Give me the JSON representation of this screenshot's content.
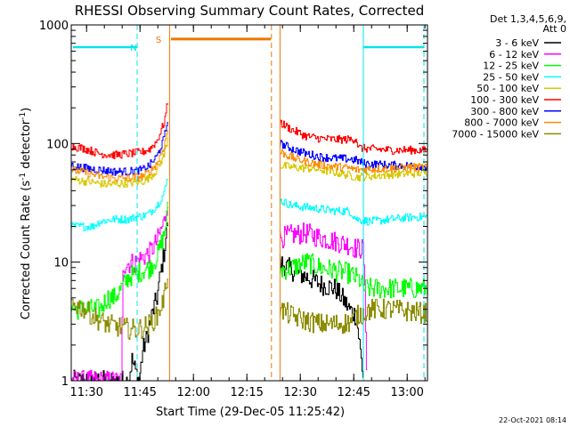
{
  "chart_data": {
    "type": "line",
    "title": "RHESSI Observing Summary Count Rates, Corrected",
    "xlabel": "Start Time (29-Dec-05 11:25:42)",
    "ylabel": "Corrected Count Rate (s",
    "ylabel_sup1": "-1",
    "ylabel_mid": " detector",
    "ylabel_sup2": "-1",
    "ylabel_end": ")",
    "yscale": "log",
    "ylim": [
      1,
      1000
    ],
    "xlim_minutes": [
      0,
      100
    ],
    "xticks": [
      {
        "t": 4.3,
        "label": "11:30"
      },
      {
        "t": 19.3,
        "label": "11:45"
      },
      {
        "t": 34.3,
        "label": "12:00"
      },
      {
        "t": 49.3,
        "label": "12:15"
      },
      {
        "t": 64.3,
        "label": "12:30"
      },
      {
        "t": 79.3,
        "label": "12:45"
      },
      {
        "t": 94.3,
        "label": "13:00"
      }
    ],
    "yticks": [
      {
        "v": 1,
        "label": "1"
      },
      {
        "v": 10,
        "label": "10"
      },
      {
        "v": 100,
        "label": "100"
      },
      {
        "v": 1000,
        "label": "1000"
      }
    ],
    "legend_header": [
      "Det 1,3,4,5,6,9,",
      "Att 0"
    ],
    "legend_position": "right",
    "flags": [
      {
        "label": "N",
        "color": "#00e5ee",
        "level": 650,
        "segments": [
          [
            0.5,
            18.5
          ],
          [
            82,
            99
          ]
        ]
      },
      {
        "label": "S",
        "color": "#ee7600",
        "level": 760,
        "segments": [
          [
            28,
            56
          ]
        ]
      }
    ],
    "annotation_label_positions_t": {
      "N": 17.5,
      "S": 24.5
    },
    "vlines": [
      {
        "t": 18.5,
        "color": "#00e5ee",
        "dash": true
      },
      {
        "t": 27.6,
        "color": "#ee7600",
        "dash": false
      },
      {
        "t": 56.2,
        "color": "#ee7600",
        "dash": true
      },
      {
        "t": 58.6,
        "color": "#ee7600",
        "dash": false
      },
      {
        "t": 82.0,
        "color": "#00e5ee",
        "dash": false
      },
      {
        "t": 99.0,
        "color": "#00e5ee",
        "dash": true
      }
    ],
    "gap": [
      27.0,
      58.6
    ],
    "series": [
      {
        "name": "3 - 6 keV",
        "color": "#000000",
        "points": [
          [
            0,
            1
          ],
          [
            16,
            1
          ],
          [
            17,
            1.5
          ],
          [
            18,
            1.2
          ],
          [
            19,
            1
          ],
          [
            20,
            1.8
          ],
          [
            21,
            2.2
          ],
          [
            22,
            3
          ],
          [
            23,
            4
          ],
          [
            24,
            5
          ],
          [
            25,
            8
          ],
          [
            26,
            12
          ],
          [
            27,
            22
          ],
          [
            58.6,
            10
          ],
          [
            62,
            8.5
          ],
          [
            66,
            7.5
          ],
          [
            70,
            6.5
          ],
          [
            74,
            6
          ],
          [
            76,
            5
          ],
          [
            78,
            4
          ],
          [
            80,
            3.5
          ],
          [
            82,
            1
          ]
        ]
      },
      {
        "name": "6 - 12 keV",
        "color": "#ff00ff",
        "points": [
          [
            0,
            1
          ],
          [
            14,
            1
          ],
          [
            14.5,
            9.5
          ],
          [
            18,
            10
          ],
          [
            20,
            11
          ],
          [
            22,
            12
          ],
          [
            24,
            15
          ],
          [
            26,
            22
          ],
          [
            27,
            33
          ],
          [
            58.6,
            16
          ],
          [
            62,
            17
          ],
          [
            66,
            17.5
          ],
          [
            70,
            16
          ],
          [
            74,
            15
          ],
          [
            78,
            14
          ],
          [
            80,
            13
          ],
          [
            82,
            13
          ],
          [
            83,
            1
          ]
        ]
      },
      {
        "name": "12 - 25 keV",
        "color": "#00ff00",
        "points": [
          [
            0,
            4
          ],
          [
            8,
            4
          ],
          [
            10,
            5
          ],
          [
            12,
            5
          ],
          [
            14,
            6
          ],
          [
            16,
            7.5
          ],
          [
            18,
            8
          ],
          [
            20,
            8.5
          ],
          [
            22,
            9
          ],
          [
            24,
            11
          ],
          [
            26,
            17
          ],
          [
            27,
            27
          ],
          [
            58.6,
            8.5
          ],
          [
            62,
            9
          ],
          [
            66,
            10
          ],
          [
            70,
            9
          ],
          [
            74,
            8.5
          ],
          [
            78,
            8
          ],
          [
            81,
            7
          ],
          [
            82,
            6
          ],
          [
            100,
            6
          ]
        ]
      },
      {
        "name": "25 - 50 keV",
        "color": "#00ffff",
        "points": [
          [
            0,
            20
          ],
          [
            6,
            20
          ],
          [
            8,
            22
          ],
          [
            12,
            23
          ],
          [
            16,
            23
          ],
          [
            18,
            24
          ],
          [
            20,
            24.5
          ],
          [
            22,
            26
          ],
          [
            24,
            30
          ],
          [
            26,
            38
          ],
          [
            27,
            52
          ],
          [
            58.6,
            33
          ],
          [
            62,
            30
          ],
          [
            66,
            29
          ],
          [
            70,
            28
          ],
          [
            74,
            27
          ],
          [
            78,
            27
          ],
          [
            80,
            23
          ],
          [
            84,
            22
          ],
          [
            90,
            23
          ],
          [
            96,
            24
          ],
          [
            100,
            24
          ]
        ]
      },
      {
        "name": "50 - 100 keV",
        "color": "#d7c800",
        "points": [
          [
            0,
            50
          ],
          [
            6,
            47
          ],
          [
            10,
            45
          ],
          [
            14,
            46
          ],
          [
            18,
            47
          ],
          [
            20,
            48
          ],
          [
            22,
            52
          ],
          [
            24,
            60
          ],
          [
            26,
            80
          ],
          [
            27,
            110
          ],
          [
            58.6,
            65
          ],
          [
            62,
            63
          ],
          [
            66,
            62
          ],
          [
            70,
            60
          ],
          [
            74,
            57
          ],
          [
            78,
            54
          ],
          [
            80,
            52
          ],
          [
            84,
            53
          ],
          [
            90,
            55
          ],
          [
            96,
            56
          ],
          [
            100,
            57
          ]
        ]
      },
      {
        "name": "100 - 300 keV",
        "color": "#ff0000",
        "points": [
          [
            0,
            95
          ],
          [
            4,
            90
          ],
          [
            8,
            82
          ],
          [
            12,
            80
          ],
          [
            16,
            82
          ],
          [
            20,
            85
          ],
          [
            22,
            90
          ],
          [
            24,
            105
          ],
          [
            26,
            150
          ],
          [
            27,
            220
          ],
          [
            58.6,
            150
          ],
          [
            62,
            130
          ],
          [
            66,
            115
          ],
          [
            70,
            110
          ],
          [
            74,
            108
          ],
          [
            78,
            108
          ],
          [
            80,
            110
          ],
          [
            80.5,
            92
          ],
          [
            84,
            90
          ],
          [
            90,
            88
          ],
          [
            96,
            88
          ],
          [
            100,
            87
          ]
        ]
      },
      {
        "name": "300 - 800 keV",
        "color": "#0000ff",
        "points": [
          [
            0,
            65
          ],
          [
            4,
            62
          ],
          [
            8,
            60
          ],
          [
            12,
            58
          ],
          [
            16,
            58
          ],
          [
            20,
            60
          ],
          [
            22,
            66
          ],
          [
            24,
            78
          ],
          [
            26,
            110
          ],
          [
            27,
            155
          ],
          [
            58.6,
            100
          ],
          [
            62,
            90
          ],
          [
            66,
            82
          ],
          [
            70,
            77
          ],
          [
            74,
            75
          ],
          [
            78,
            74
          ],
          [
            80,
            72
          ],
          [
            82,
            68
          ],
          [
            88,
            66
          ],
          [
            94,
            65
          ],
          [
            100,
            64
          ]
        ]
      },
      {
        "name": "800 - 7000 keV",
        "color": "#ff8c00",
        "points": [
          [
            0,
            60
          ],
          [
            4,
            57
          ],
          [
            8,
            53
          ],
          [
            12,
            51
          ],
          [
            16,
            51
          ],
          [
            20,
            53
          ],
          [
            22,
            58
          ],
          [
            24,
            68
          ],
          [
            26,
            95
          ],
          [
            27,
            130
          ],
          [
            58.6,
            85
          ],
          [
            62,
            76
          ],
          [
            66,
            70
          ],
          [
            70,
            66
          ],
          [
            74,
            64
          ],
          [
            78,
            62
          ],
          [
            80,
            60
          ],
          [
            84,
            61
          ],
          [
            90,
            62
          ],
          [
            96,
            63
          ],
          [
            100,
            63
          ]
        ]
      },
      {
        "name": "7000 - 15000 keV",
        "color": "#8b8b00",
        "points": [
          [
            0,
            4.5
          ],
          [
            4,
            4
          ],
          [
            6,
            3.5
          ],
          [
            8,
            3.2
          ],
          [
            10,
            3
          ],
          [
            14,
            2.8
          ],
          [
            18,
            2.7
          ],
          [
            20,
            2.8
          ],
          [
            22,
            3
          ],
          [
            24,
            3.5
          ],
          [
            26,
            5
          ],
          [
            27,
            8
          ],
          [
            58.6,
            4
          ],
          [
            62,
            3.5
          ],
          [
            66,
            3.2
          ],
          [
            70,
            3
          ],
          [
            74,
            3
          ],
          [
            78,
            3.1
          ],
          [
            80,
            3.5
          ],
          [
            84,
            4
          ],
          [
            90,
            4
          ],
          [
            96,
            3.8
          ],
          [
            100,
            3.7
          ]
        ]
      }
    ],
    "grid": false
  },
  "footer_timestamp": "22-Oct-2021 08:14"
}
